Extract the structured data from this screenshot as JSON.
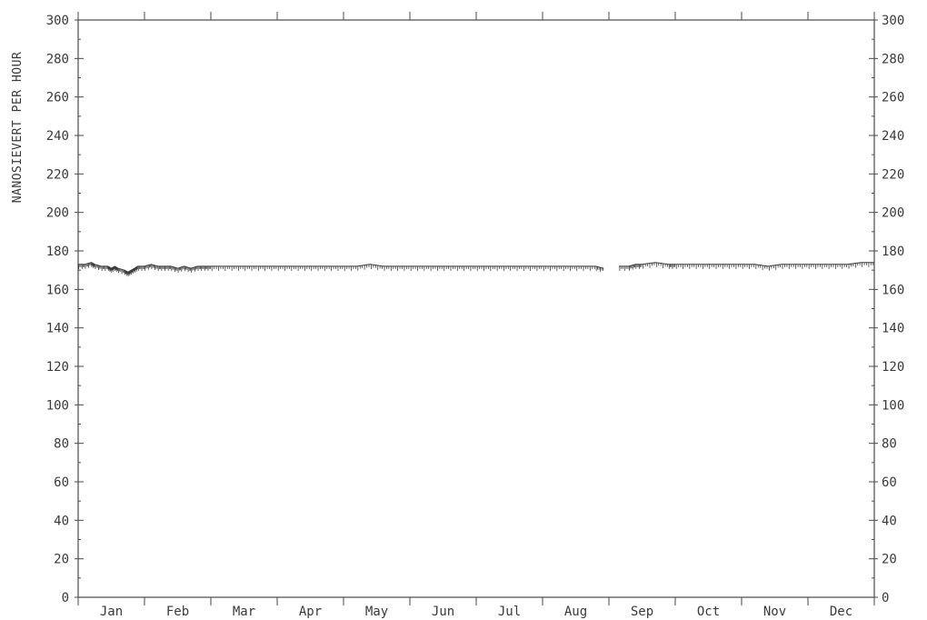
{
  "chart_data": {
    "type": "line",
    "title": "",
    "ylabel": "NANOSIEVERT PER HOUR",
    "xlabel": "",
    "ylim": [
      0,
      300
    ],
    "yticks": [
      0,
      20,
      40,
      60,
      80,
      100,
      120,
      140,
      160,
      180,
      200,
      220,
      240,
      260,
      280,
      300
    ],
    "yticks_right": [
      0,
      20,
      40,
      60,
      80,
      100,
      120,
      140,
      160,
      180,
      200,
      220,
      240,
      260,
      280,
      300
    ],
    "xlim": [
      0,
      12
    ],
    "categories": [
      "Jan",
      "Feb",
      "Mar",
      "Apr",
      "May",
      "Jun",
      "Jul",
      "Aug",
      "Sep",
      "Oct",
      "Nov",
      "Dec"
    ],
    "grid": false,
    "series": [
      {
        "name": "",
        "x": [
          0.0,
          0.1,
          0.2,
          0.25,
          0.35,
          0.45,
          0.5,
          0.55,
          0.6,
          0.7,
          0.75,
          0.8,
          0.85,
          0.9,
          1.0,
          1.1,
          1.2,
          1.3,
          1.4,
          1.5,
          1.6,
          1.7,
          1.8,
          1.9,
          2.0,
          2.2,
          2.4,
          2.6,
          2.8,
          3.0,
          3.2,
          3.4,
          3.6,
          3.8,
          4.0,
          4.2,
          4.4,
          4.6,
          4.8,
          5.0,
          5.2,
          5.4,
          5.6,
          5.8,
          6.0,
          6.2,
          6.4,
          6.6,
          6.8,
          7.0,
          7.2,
          7.4,
          7.6,
          7.8,
          7.92,
          null,
          8.15,
          8.3,
          8.4,
          8.5,
          8.7,
          8.9,
          9.0,
          9.2,
          9.4,
          9.6,
          9.8,
          10.0,
          10.2,
          10.4,
          10.6,
          10.8,
          11.0,
          11.2,
          11.4,
          11.6,
          11.8,
          12.0
        ],
        "values": [
          173,
          173,
          174,
          173,
          172,
          172,
          171,
          172,
          171,
          170,
          169,
          170,
          171,
          172,
          172,
          173,
          172,
          172,
          172,
          171,
          172,
          171,
          172,
          172,
          172,
          172,
          172,
          172,
          172,
          172,
          172,
          172,
          172,
          172,
          172,
          172,
          173,
          172,
          172,
          172,
          172,
          172,
          172,
          172,
          172,
          172,
          172,
          172,
          172,
          172,
          172,
          172,
          172,
          172,
          171,
          null,
          172,
          172,
          173,
          173,
          174,
          173,
          173,
          173,
          173,
          173,
          173,
          173,
          173,
          172,
          173,
          173,
          173,
          173,
          173,
          173,
          174,
          174
        ]
      }
    ]
  }
}
